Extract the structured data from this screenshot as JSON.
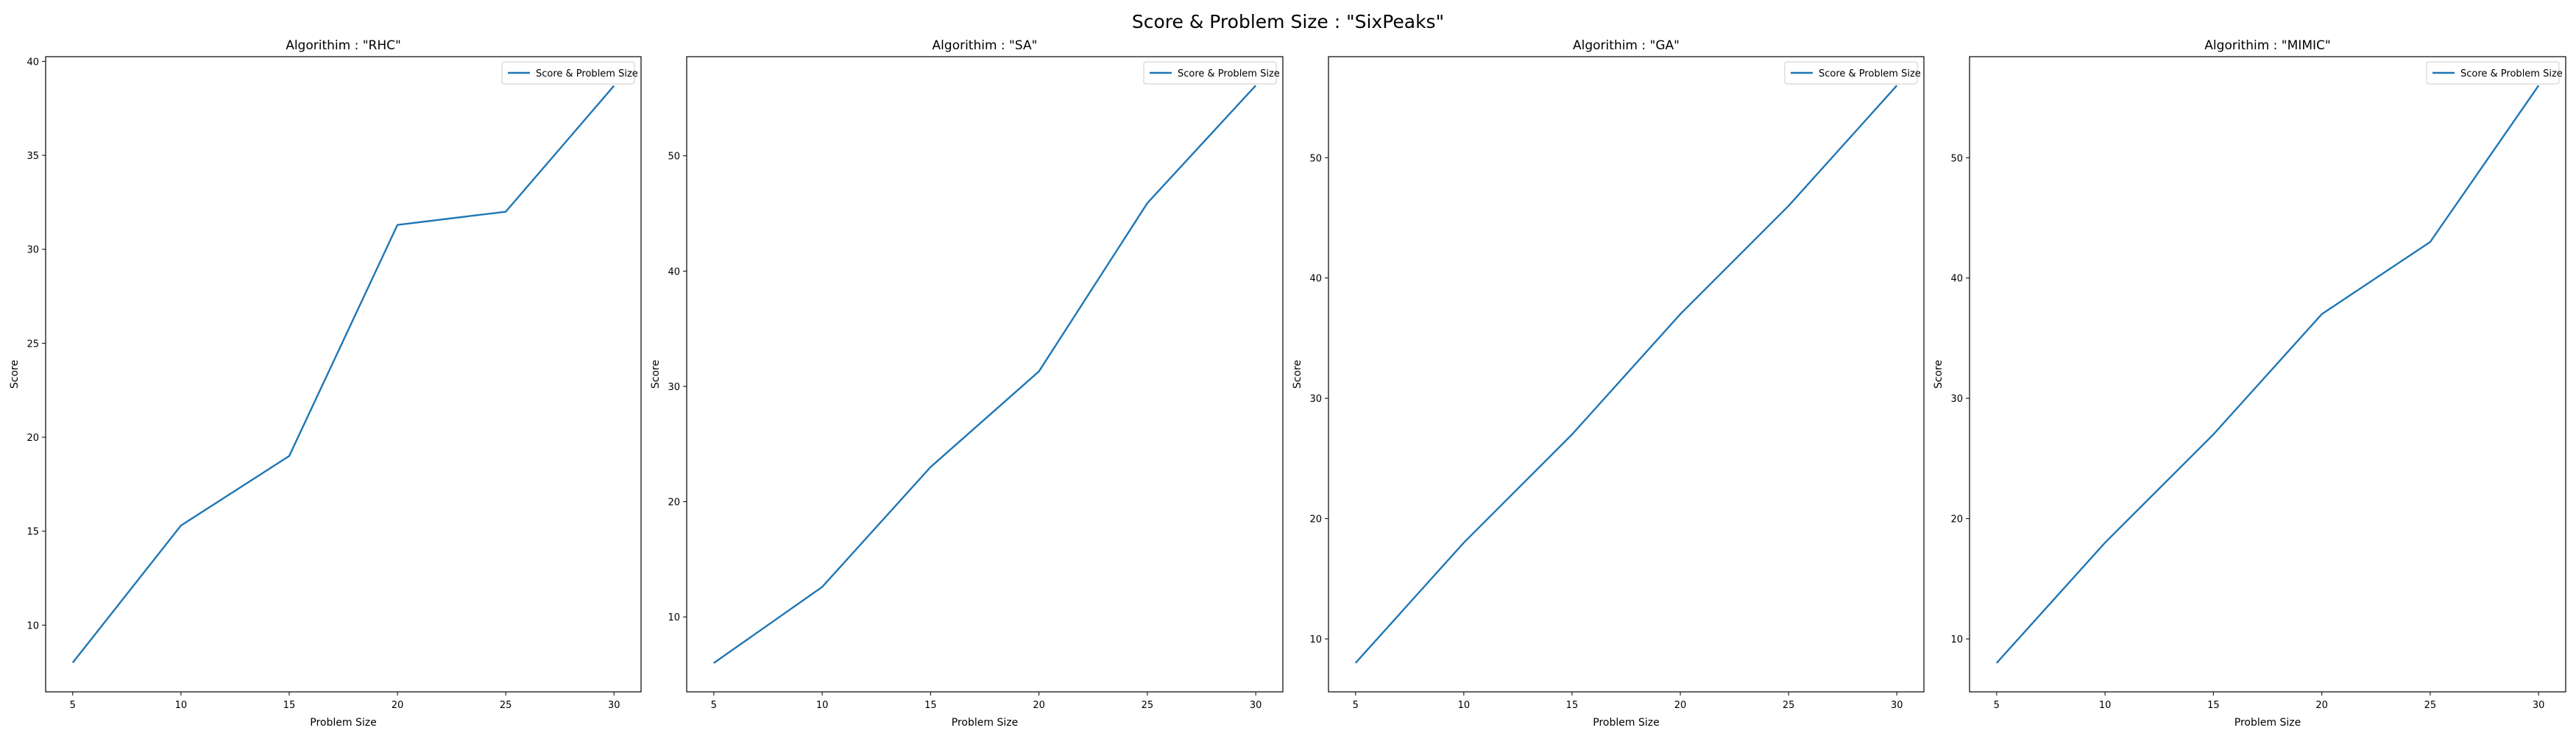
{
  "figure": {
    "title": "Score & Problem Size : \"SixPeaks\""
  },
  "chart_data": [
    {
      "type": "line",
      "title": "Algorithim : \"RHC\"",
      "xlabel": "Problem Size",
      "ylabel": "Score",
      "x": [
        5,
        10,
        15,
        20,
        25,
        30
      ],
      "series": [
        {
          "name": "Score & Problem Size",
          "values": [
            8,
            15.3,
            19,
            31.3,
            32,
            38.7
          ],
          "color": "#1f77b4"
        }
      ],
      "xlim": [
        3.75,
        31.25
      ],
      "ylim": [
        6.45,
        40.25
      ],
      "xticks": [
        5,
        10,
        15,
        20,
        25,
        30
      ],
      "yticks": [
        10,
        15,
        20,
        25,
        30,
        35,
        40
      ],
      "grid": false,
      "legend": "upper right"
    },
    {
      "type": "line",
      "title": "Algorithim : \"SA\"",
      "xlabel": "Problem Size",
      "ylabel": "Score",
      "x": [
        5,
        10,
        15,
        20,
        25,
        30
      ],
      "series": [
        {
          "name": "Score & Problem Size",
          "values": [
            6,
            12.6,
            23,
            31.3,
            45.9,
            56.1
          ],
          "color": "#1f77b4"
        }
      ],
      "xlim": [
        3.75,
        31.25
      ],
      "ylim": [
        3.5,
        58.6
      ],
      "xticks": [
        5,
        10,
        15,
        20,
        25,
        30
      ],
      "yticks": [
        10,
        20,
        30,
        40,
        50
      ],
      "grid": false,
      "legend": "upper right"
    },
    {
      "type": "line",
      "title": "Algorithim : \"GA\"",
      "xlabel": "Problem Size",
      "ylabel": "Score",
      "x": [
        5,
        10,
        15,
        20,
        25,
        30
      ],
      "series": [
        {
          "name": "Score & Problem Size",
          "values": [
            8,
            18,
            27,
            37,
            46,
            56
          ],
          "color": "#1f77b4"
        }
      ],
      "xlim": [
        3.75,
        31.25
      ],
      "ylim": [
        5.6,
        58.4
      ],
      "xticks": [
        5,
        10,
        15,
        20,
        25,
        30
      ],
      "yticks": [
        10,
        20,
        30,
        40,
        50
      ],
      "grid": false,
      "legend": "upper right"
    },
    {
      "type": "line",
      "title": "Algorithim : \"MIMIC\"",
      "xlabel": "Problem Size",
      "ylabel": "Score",
      "x": [
        5,
        10,
        15,
        20,
        25,
        30
      ],
      "series": [
        {
          "name": "Score & Problem Size",
          "values": [
            8,
            18,
            27,
            37,
            43,
            56
          ],
          "color": "#1f77b4"
        }
      ],
      "xlim": [
        3.75,
        31.25
      ],
      "ylim": [
        5.6,
        58.4
      ],
      "xticks": [
        5,
        10,
        15,
        20,
        25,
        30
      ],
      "yticks": [
        10,
        20,
        30,
        40,
        50
      ],
      "grid": false,
      "legend": "upper right"
    }
  ]
}
